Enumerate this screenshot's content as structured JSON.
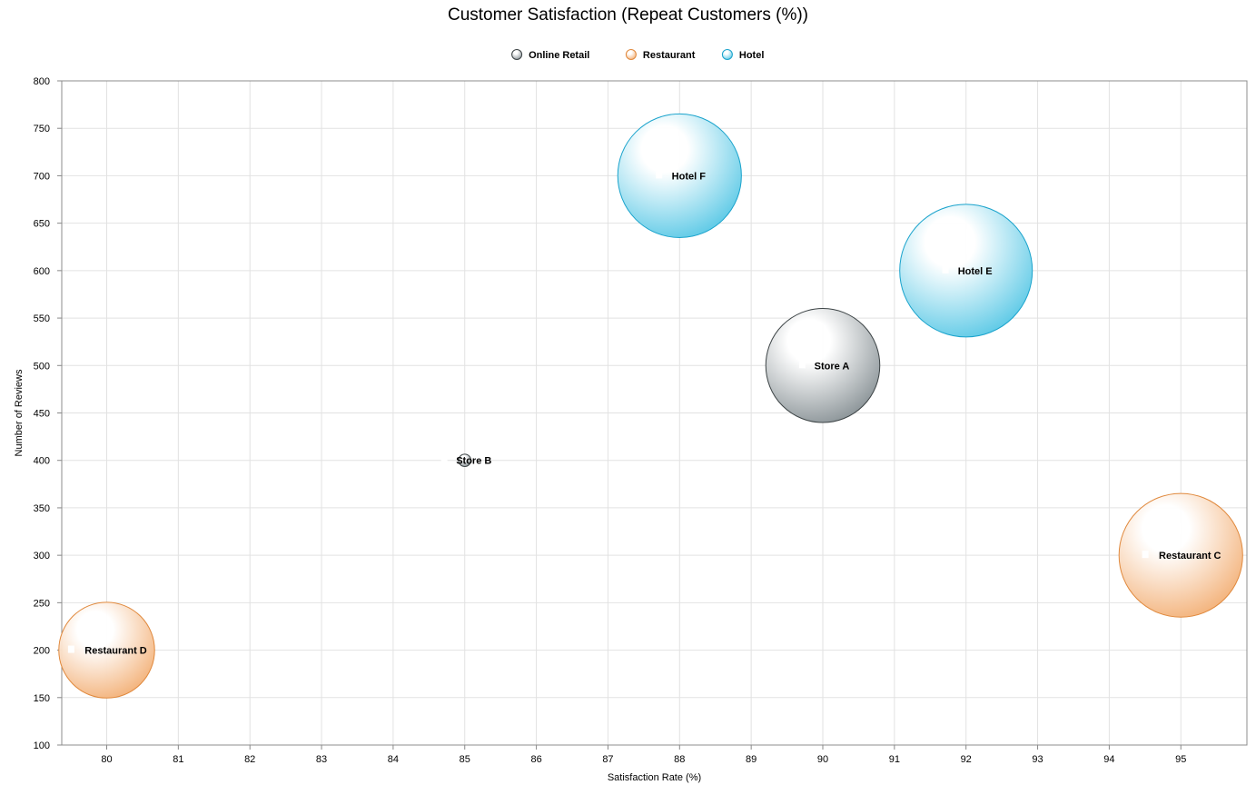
{
  "chart_data": {
    "type": "scatter",
    "subtype": "bubble",
    "title": "Customer Satisfaction (Repeat Customers (%))",
    "xlabel": "Satisfaction Rate (%)",
    "ylabel": "Number of Reviews",
    "xlim": [
      79.4,
      95.9
    ],
    "ylim": [
      100,
      800
    ],
    "xticks": [
      80,
      81,
      82,
      83,
      84,
      85,
      86,
      87,
      88,
      89,
      90,
      91,
      92,
      93,
      94,
      95
    ],
    "yticks": [
      100,
      150,
      200,
      250,
      300,
      350,
      400,
      450,
      500,
      550,
      600,
      650,
      700,
      750,
      800
    ],
    "grid": true,
    "legend_position": "top-center",
    "series": [
      {
        "name": "Online Retail",
        "color": "#8a9397",
        "stroke": "#3d4446",
        "points": [
          {
            "label": "Store A",
            "x": 90,
            "y": 500,
            "size": 85
          },
          {
            "label": "Store B",
            "x": 85,
            "y": 400,
            "size": 1
          }
        ]
      },
      {
        "name": "Restaurant",
        "color": "#f3b27a",
        "stroke": "#e0893d",
        "points": [
          {
            "label": "Restaurant C",
            "x": 95,
            "y": 300,
            "size": 100
          },
          {
            "label": "Restaurant D",
            "x": 80,
            "y": 200,
            "size": 60
          }
        ]
      },
      {
        "name": "Hotel",
        "color": "#5cc9e6",
        "stroke": "#1aa3cc",
        "points": [
          {
            "label": "Hotel E",
            "x": 92,
            "y": 600,
            "size": 115
          },
          {
            "label": "Hotel F",
            "x": 88,
            "y": 700,
            "size": 100
          }
        ]
      }
    ]
  }
}
